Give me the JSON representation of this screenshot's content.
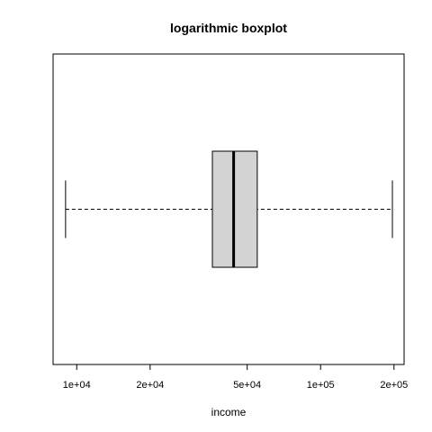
{
  "chart_data": {
    "type": "boxplot",
    "title": "logarithmic boxplot",
    "xlabel": "income",
    "log_scale": "x",
    "orientation": "horizontal",
    "xlim": [
      8000,
      220000
    ],
    "x_ticks": [
      {
        "value": 10000,
        "label": "1e+04"
      },
      {
        "value": 20000,
        "label": "2e+04"
      },
      {
        "value": 50000,
        "label": "5e+04"
      },
      {
        "value": 100000,
        "label": "1e+05"
      },
      {
        "value": 200000,
        "label": "2e+05"
      }
    ],
    "box": {
      "whisker_low": 9000,
      "q1": 36000,
      "median": 44000,
      "q3": 55000,
      "whisker_high": 197000
    },
    "colors": {
      "box_fill": "#d3d3d3",
      "stroke": "#000000"
    }
  }
}
